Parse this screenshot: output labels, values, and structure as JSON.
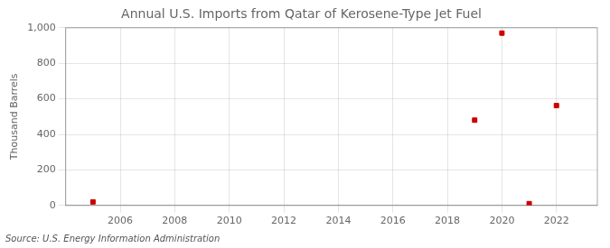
{
  "chart_data": {
    "type": "scatter",
    "title": "Annual U.S. Imports from Qatar of Kerosene-Type Jet Fuel",
    "ylabel": "Thousand Barrels",
    "annotations": [
      "Source: U.S. Energy Information Administration"
    ],
    "x": [
      2005,
      2019,
      2020,
      2021,
      2022
    ],
    "values": [
      20,
      480,
      970,
      10,
      562
    ],
    "color": "#cc0000",
    "marker": "square",
    "xlim": [
      2004,
      2023.5
    ],
    "xticks": [
      2006,
      2008,
      2010,
      2012,
      2014,
      2016,
      2018,
      2020,
      2022
    ],
    "ylim": [
      0,
      1000
    ],
    "yticks": [
      0,
      200,
      400,
      600,
      800,
      {
        "value": 1000,
        "label": "1,000"
      }
    ],
    "grid": true
  }
}
